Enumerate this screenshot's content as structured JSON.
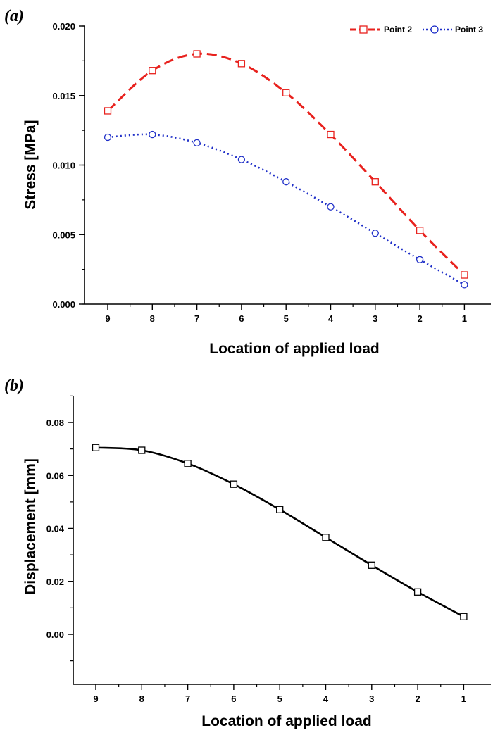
{
  "chart_data": [
    {
      "panel_label": "a",
      "type": "line",
      "categories": [
        "9",
        "8",
        "7",
        "6",
        "5",
        "4",
        "3",
        "2",
        "1"
      ],
      "series": [
        {
          "name": "Point 2",
          "color": "#e8211d",
          "marker": "square",
          "line_style": "dashed",
          "values": [
            0.0139,
            0.0168,
            0.018,
            0.0173,
            0.0152,
            0.0122,
            0.0088,
            0.0053,
            0.0021
          ]
        },
        {
          "name": "Point 3",
          "color": "#1f2fc8",
          "marker": "circle",
          "line_style": "dotted",
          "values": [
            0.012,
            0.0122,
            0.0116,
            0.0104,
            0.0088,
            0.007,
            0.0051,
            0.0032,
            0.0014
          ]
        }
      ],
      "xlabel": "Location of applied load",
      "ylabel": "Stress [MPa]",
      "ylim": [
        0.0,
        0.02
      ],
      "yticks": [
        "0.000",
        "0.005",
        "0.010",
        "0.015",
        "0.020"
      ],
      "legend_position": "top-right",
      "grid": false
    },
    {
      "panel_label": "b",
      "type": "line",
      "categories": [
        "9",
        "8",
        "7",
        "6",
        "5",
        "4",
        "3",
        "2",
        "1"
      ],
      "series": [
        {
          "name": "Displacement",
          "color": "#000000",
          "marker": "square",
          "line_style": "solid",
          "values": [
            0.0705,
            0.0695,
            0.0645,
            0.0567,
            0.0471,
            0.0366,
            0.0261,
            0.016,
            0.0067
          ]
        }
      ],
      "xlabel": "Location of applied load",
      "ylabel": "Displacement [mm]",
      "ylim": [
        -0.015,
        0.09
      ],
      "yticks": [
        "0.00",
        "0.02",
        "0.04",
        "0.06",
        "0.08"
      ],
      "legend_position": "none",
      "grid": false
    }
  ]
}
